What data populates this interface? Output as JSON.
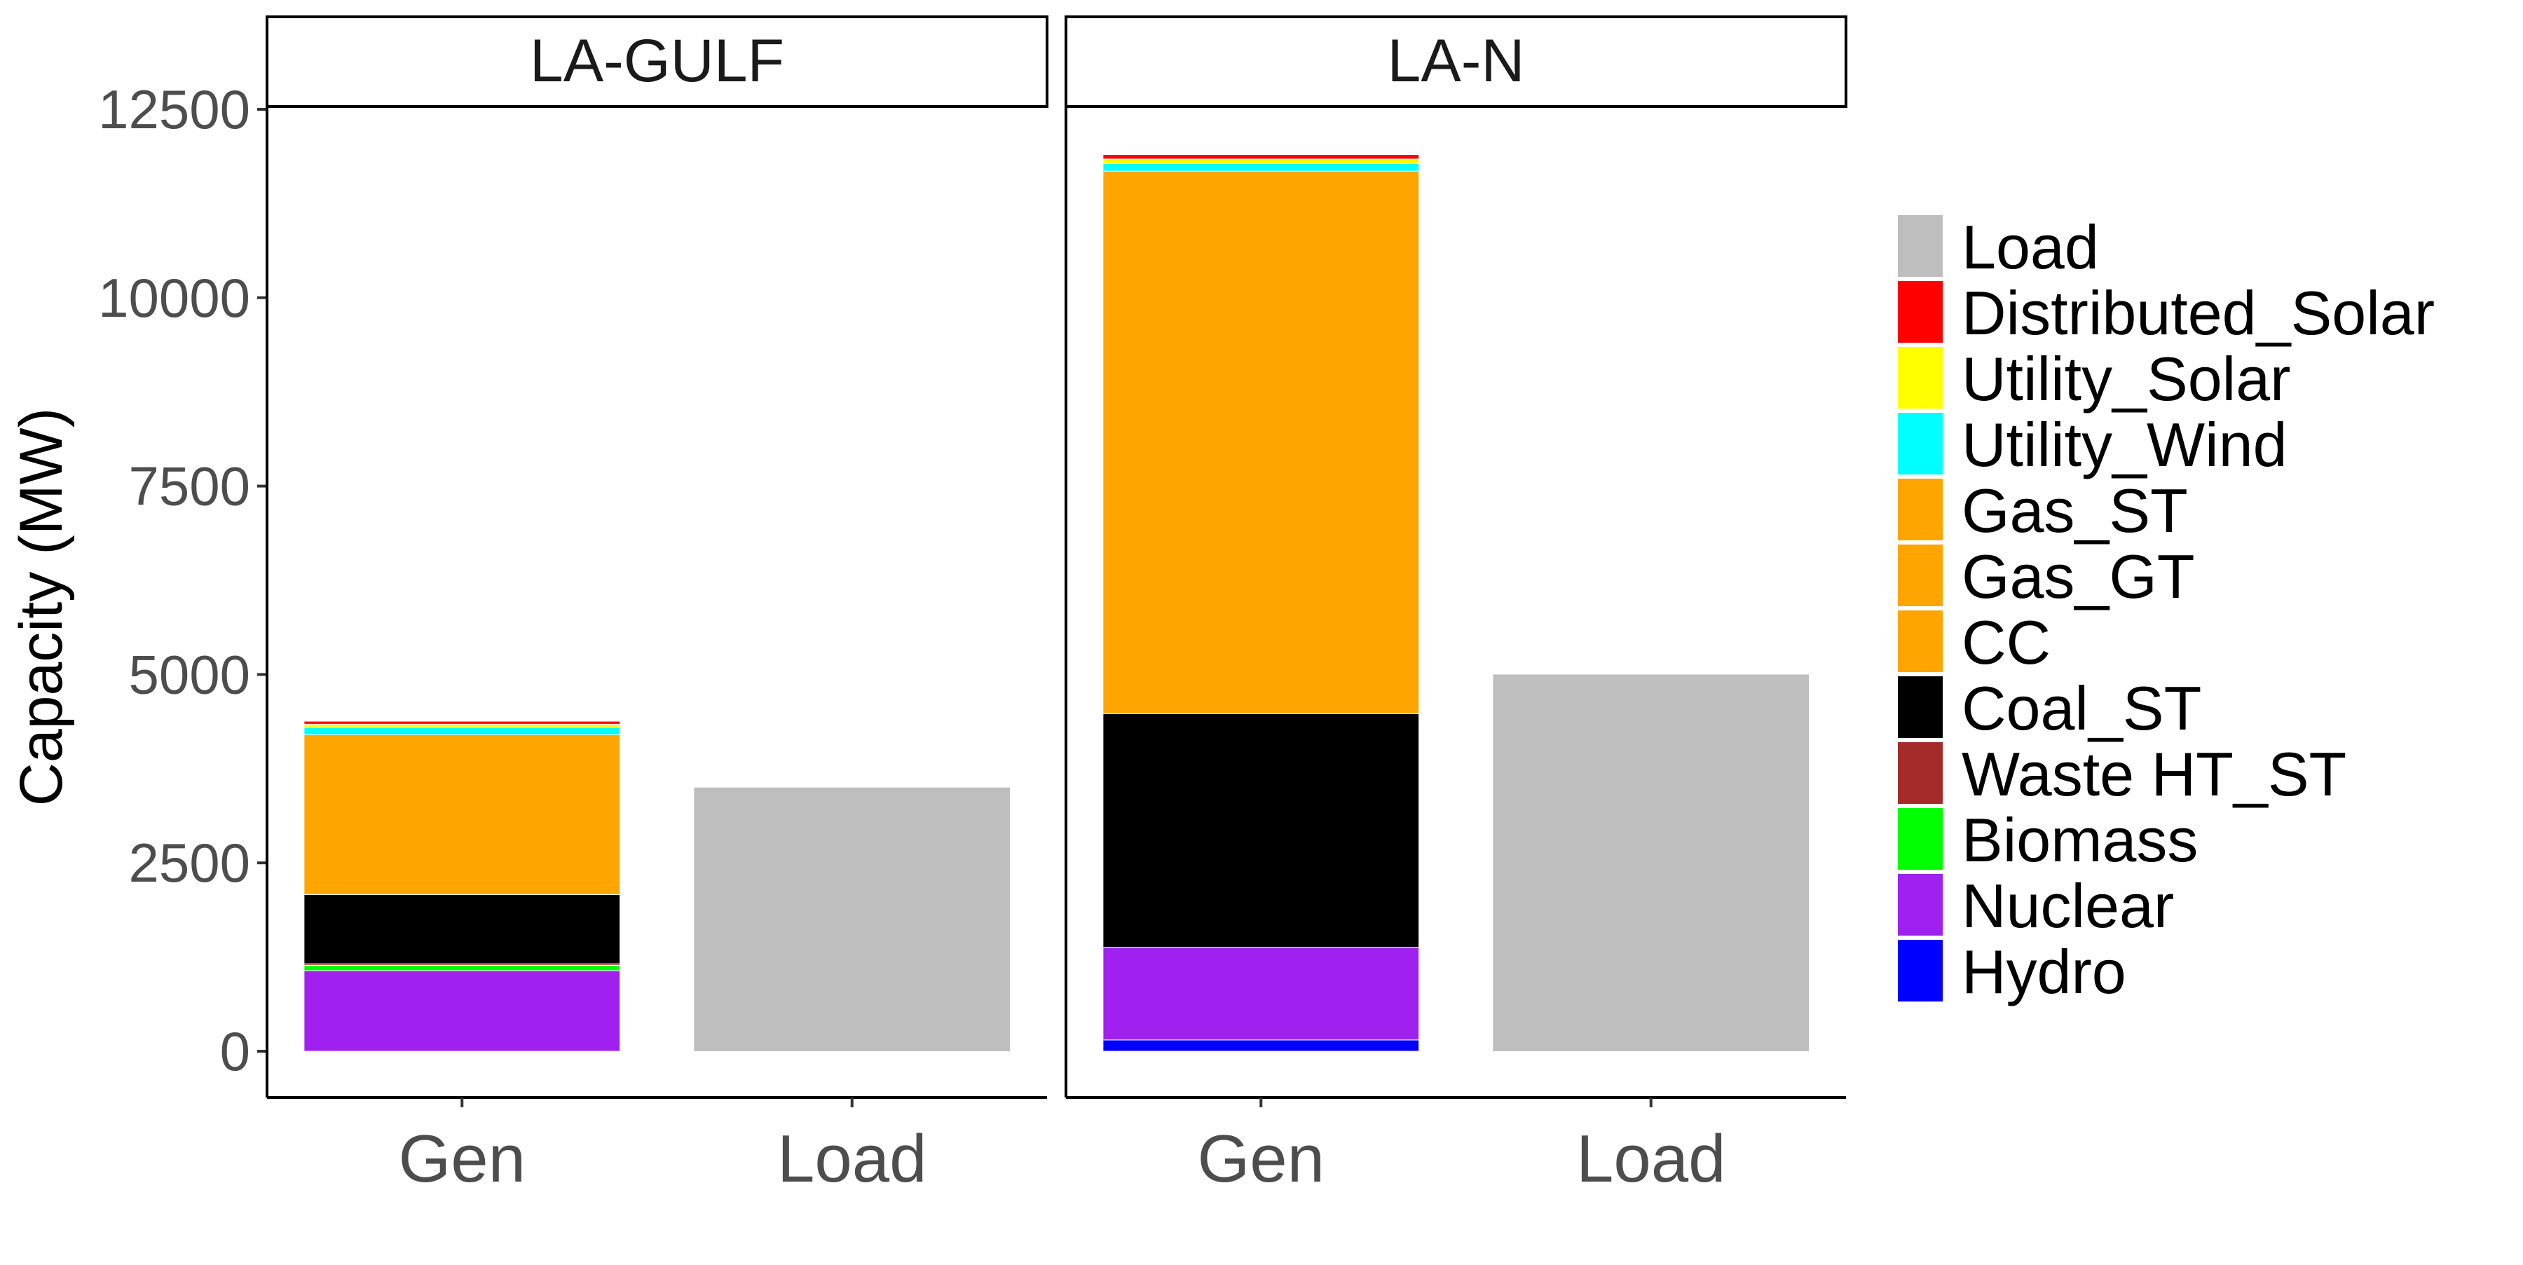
{
  "chart_data": {
    "type": "bar",
    "stacked": true,
    "faceted": true,
    "ylabel": "Capacity (MW)",
    "xlabel": "",
    "ylim": [
      0,
      12500
    ],
    "yticks": [
      "0",
      "2500",
      "5000",
      "7500",
      "10000",
      "12500"
    ],
    "categories": [
      "Gen",
      "Load"
    ],
    "grid": false,
    "legend_position": "right",
    "legend": [
      {
        "name": "Load",
        "color": "#BEBEBE"
      },
      {
        "name": "Distributed_Solar",
        "color": "#FF0000"
      },
      {
        "name": "Utility_Solar",
        "color": "#FFFF00"
      },
      {
        "name": "Utility_Wind",
        "color": "#00FFFF"
      },
      {
        "name": "Gas_ST",
        "color": "#FFA500"
      },
      {
        "name": "Gas_GT",
        "color": "#FFA500"
      },
      {
        "name": "CC",
        "color": "#FFA500"
      },
      {
        "name": "Coal_ST",
        "color": "#000000"
      },
      {
        "name": "Waste HT_ST",
        "color": "#A52A2A"
      },
      {
        "name": "Biomass",
        "color": "#00FF00"
      },
      {
        "name": "Nuclear",
        "color": "#A020F0"
      },
      {
        "name": "Hydro",
        "color": "#0000FF"
      }
    ],
    "facets": [
      {
        "name": "LA-GULF",
        "bars": [
          {
            "category": "Gen",
            "stack": [
              {
                "series": "Hydro",
                "value": 0
              },
              {
                "series": "Nuclear",
                "value": 1070
              },
              {
                "series": "Biomass",
                "value": 70
              },
              {
                "series": "Waste HT_ST",
                "value": 20
              },
              {
                "series": "Coal_ST",
                "value": 920
              },
              {
                "series": "CC",
                "value": 2120
              },
              {
                "series": "Gas_GT",
                "value": 0
              },
              {
                "series": "Gas_ST",
                "value": 0
              },
              {
                "series": "Utility_Wind",
                "value": 100
              },
              {
                "series": "Utility_Solar",
                "value": 40
              },
              {
                "series": "Distributed_Solar",
                "value": 40
              }
            ]
          },
          {
            "category": "Load",
            "stack": [
              {
                "series": "Load",
                "value": 3500
              }
            ]
          }
        ]
      },
      {
        "name": "LA-N",
        "bars": [
          {
            "category": "Gen",
            "stack": [
              {
                "series": "Hydro",
                "value": 150
              },
              {
                "series": "Nuclear",
                "value": 1230
              },
              {
                "series": "Biomass",
                "value": 0
              },
              {
                "series": "Waste HT_ST",
                "value": 0
              },
              {
                "series": "Coal_ST",
                "value": 3100
              },
              {
                "series": "CC",
                "value": 7200
              },
              {
                "series": "Gas_GT",
                "value": 0
              },
              {
                "series": "Gas_ST",
                "value": 0
              },
              {
                "series": "Utility_Wind",
                "value": 100
              },
              {
                "series": "Utility_Solar",
                "value": 60
              },
              {
                "series": "Distributed_Solar",
                "value": 60
              }
            ]
          },
          {
            "category": "Load",
            "stack": [
              {
                "series": "Load",
                "value": 5000
              }
            ]
          }
        ]
      }
    ]
  }
}
